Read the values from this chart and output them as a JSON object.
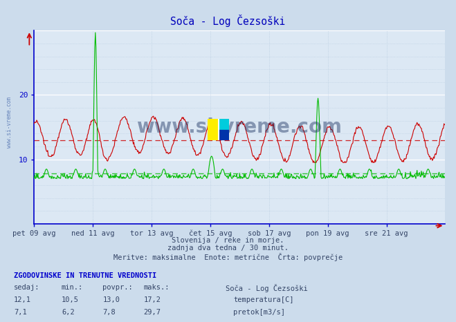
{
  "title": "Soča - Log Čezsoški",
  "bg_color": "#ccdcec",
  "plot_bg_color": "#dce8f4",
  "grid_color_v": "#b8cce0",
  "grid_color_h": "#b8cce0",
  "grid_white_h": "#ffffff",
  "x_labels": [
    "pet 09 avg",
    "ned 11 avg",
    "tor 13 avg",
    "čet 15 avg",
    "sob 17 avg",
    "pon 19 avg",
    "sre 21 avg"
  ],
  "x_ticks_pos": [
    0,
    96,
    192,
    288,
    384,
    480,
    576
  ],
  "total_points": 672,
  "y_min": 0,
  "y_max": 30,
  "y_ticks": [
    10,
    20
  ],
  "temp_avg": 13.0,
  "flow_avg": 7.8,
  "temp_color": "#cc0000",
  "flow_color": "#00bb00",
  "subtitle1": "Slovenija / reke in morje.",
  "subtitle2": "zadnja dva tedna / 30 minut.",
  "subtitle3": "Meritve: maksimalne  Enote: metrične  Črta: povprečje",
  "legend_title": "ZGODOVINSKE IN TRENUTNE VREDNOSTI",
  "col_sedaj": "sedaj:",
  "col_min": "min.:",
  "col_povpr": "povpr.:",
  "col_maks": "maks.:",
  "station": "Soča - Log Čezsoški",
  "temp_sedaj": "12,1",
  "temp_min": "10,5",
  "temp_povpr": "13,0",
  "temp_maks": "17,2",
  "flow_sedaj": "7,1",
  "flow_min": "6,2",
  "flow_povpr": "7,8",
  "flow_maks": "29,7",
  "watermark": "www.si-vreme.com",
  "axis_color": "#0000cc",
  "text_color": "#5588aa",
  "label_color": "#334466"
}
